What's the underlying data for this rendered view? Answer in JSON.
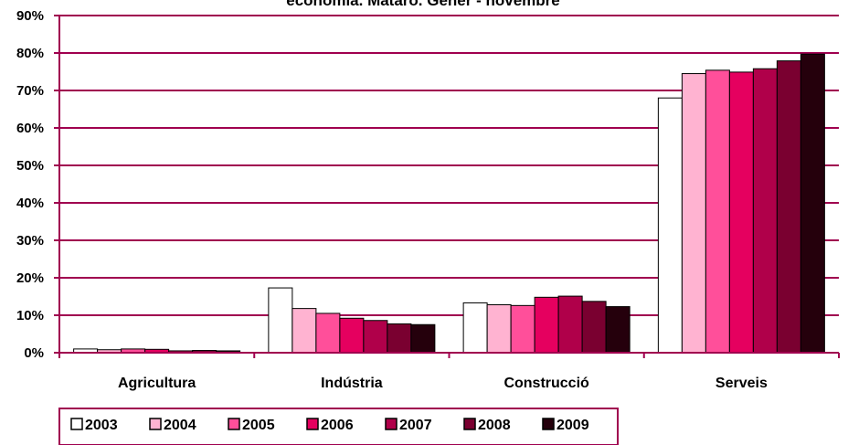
{
  "chart_data": {
    "type": "bar",
    "title": "economia. Mataró. Gener - novembre",
    "categories": [
      "Agricultura",
      "Indústria",
      "Construcció",
      "Serveis"
    ],
    "ylim": [
      0,
      90
    ],
    "ytick_labels": [
      "0%",
      "10%",
      "20%",
      "30%",
      "40%",
      "50%",
      "60%",
      "70%",
      "80%",
      "90%"
    ],
    "grid": true,
    "legend_position": "bottom-left",
    "series": [
      {
        "name": "2003",
        "color": "#FFFFFF",
        "values": [
          1.0,
          17.3,
          13.3,
          68.0
        ]
      },
      {
        "name": "2004",
        "color": "#FFB3D1",
        "values": [
          0.8,
          11.8,
          12.8,
          74.5
        ]
      },
      {
        "name": "2005",
        "color": "#FF4F9A",
        "values": [
          1.0,
          10.5,
          12.6,
          75.4
        ]
      },
      {
        "name": "2006",
        "color": "#E5005F",
        "values": [
          0.9,
          9.2,
          14.8,
          74.9
        ]
      },
      {
        "name": "2007",
        "color": "#B0004A",
        "values": [
          0.5,
          8.6,
          15.1,
          75.8
        ]
      },
      {
        "name": "2008",
        "color": "#7A0030",
        "values": [
          0.6,
          7.7,
          13.7,
          77.9
        ]
      },
      {
        "name": "2009",
        "color": "#25000C",
        "values": [
          0.5,
          7.5,
          12.3,
          79.7
        ]
      }
    ],
    "colors": {
      "gridline": "#A0004F",
      "axis": "#A0004F",
      "bar_outline": "#000000"
    }
  }
}
